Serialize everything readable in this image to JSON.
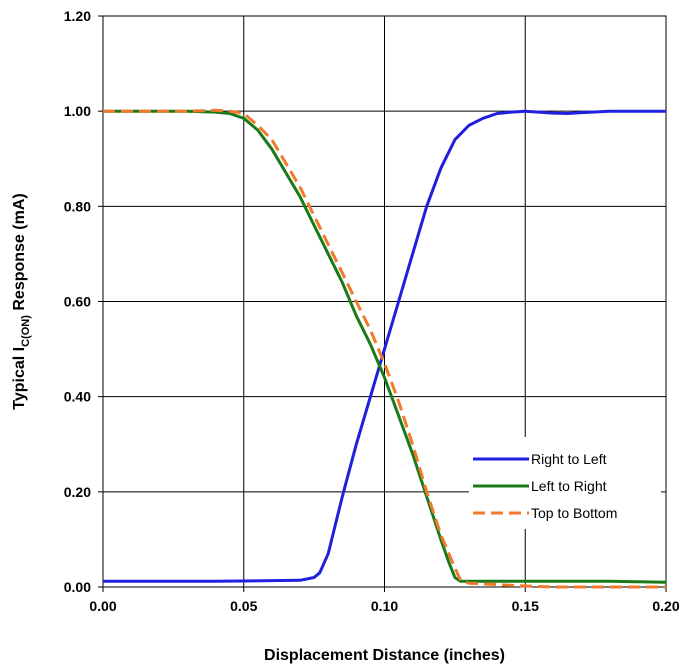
{
  "chart_data": {
    "type": "line",
    "title": "",
    "xlabel": "Displacement Distance (inches)",
    "ylabel": {
      "prefix": "Typical I",
      "subscript": "C(ON)",
      "suffix": " Response (mA)"
    },
    "xlim": [
      0,
      0.2
    ],
    "ylim": [
      0,
      1.2
    ],
    "x_ticks": [
      0.0,
      0.05,
      0.1,
      0.15,
      0.2
    ],
    "x_tick_labels": [
      "0.00",
      "0.05",
      "0.10",
      "0.15",
      "0.20"
    ],
    "y_ticks": [
      0.0,
      0.2,
      0.4,
      0.6,
      0.8,
      1.0,
      1.2
    ],
    "y_tick_labels": [
      "0.00",
      "0.20",
      "0.40",
      "0.60",
      "0.80",
      "1.00",
      "1.20"
    ],
    "grid": true,
    "legend_position": "bottom-right",
    "series": [
      {
        "name": "Right to Left",
        "color": "#1f1fe0",
        "style": "solid",
        "x": [
          0.0,
          0.04,
          0.07,
          0.075,
          0.077,
          0.08,
          0.085,
          0.09,
          0.095,
          0.1,
          0.105,
          0.11,
          0.115,
          0.12,
          0.125,
          0.13,
          0.135,
          0.14,
          0.145,
          0.15,
          0.16,
          0.165,
          0.17,
          0.18,
          0.19,
          0.2
        ],
        "y": [
          0.012,
          0.012,
          0.014,
          0.02,
          0.03,
          0.07,
          0.19,
          0.3,
          0.4,
          0.5,
          0.6,
          0.7,
          0.8,
          0.88,
          0.94,
          0.97,
          0.985,
          0.995,
          0.998,
          1.0,
          0.996,
          0.995,
          0.997,
          1.0,
          1.0,
          1.0
        ]
      },
      {
        "name": "Left to Right",
        "color": "#1a7a1a",
        "style": "solid",
        "x": [
          0.0,
          0.01,
          0.02,
          0.03,
          0.04,
          0.045,
          0.05,
          0.055,
          0.06,
          0.065,
          0.07,
          0.075,
          0.08,
          0.085,
          0.09,
          0.095,
          0.1,
          0.105,
          0.11,
          0.115,
          0.12,
          0.123,
          0.125,
          0.127,
          0.13,
          0.14,
          0.15,
          0.16,
          0.17,
          0.18,
          0.19,
          0.2
        ],
        "y": [
          1.0,
          1.0,
          1.0,
          1.0,
          0.998,
          0.995,
          0.985,
          0.96,
          0.92,
          0.87,
          0.82,
          0.76,
          0.7,
          0.64,
          0.57,
          0.51,
          0.44,
          0.36,
          0.28,
          0.19,
          0.1,
          0.05,
          0.02,
          0.012,
          0.012,
          0.012,
          0.012,
          0.012,
          0.012,
          0.012,
          0.011,
          0.01
        ]
      },
      {
        "name": "Top to Bottom",
        "color": "#f07a2a",
        "style": "dashed",
        "x": [
          0.0,
          0.01,
          0.02,
          0.03,
          0.04,
          0.045,
          0.05,
          0.055,
          0.06,
          0.065,
          0.07,
          0.075,
          0.08,
          0.085,
          0.09,
          0.095,
          0.1,
          0.105,
          0.11,
          0.115,
          0.12,
          0.125,
          0.127,
          0.13,
          0.14,
          0.15,
          0.16,
          0.17,
          0.18,
          0.19,
          0.2
        ],
        "y": [
          1.0,
          1.0,
          1.0,
          1.0,
          1.002,
          1.0,
          0.995,
          0.97,
          0.94,
          0.89,
          0.84,
          0.78,
          0.72,
          0.66,
          0.6,
          0.54,
          0.47,
          0.39,
          0.3,
          0.2,
          0.11,
          0.04,
          0.015,
          0.008,
          0.005,
          0.002,
          0.0,
          0.0,
          0.0,
          0.0,
          0.0
        ]
      }
    ]
  }
}
